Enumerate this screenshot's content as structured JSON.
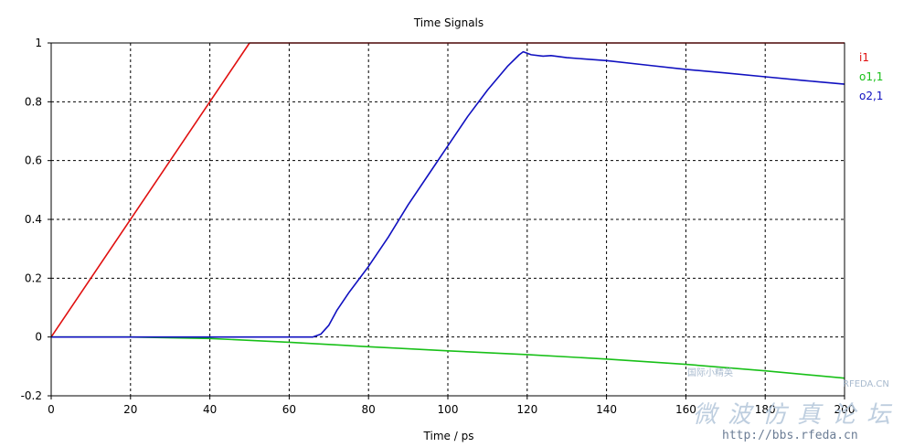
{
  "chart_data": {
    "type": "line",
    "title": "Time Signals",
    "xlabel": "Time / ps",
    "ylabel": "",
    "xlim": [
      0,
      200
    ],
    "ylim": [
      -0.2,
      1
    ],
    "xticks": [
      "0",
      "20",
      "40",
      "60",
      "80",
      "100",
      "120",
      "140",
      "160",
      "180",
      "200"
    ],
    "yticks": [
      "-0.2",
      "0",
      "0.2",
      "0.4",
      "0.6",
      "0.8",
      "1"
    ],
    "grid": true,
    "legend_position": "right",
    "series": [
      {
        "name": "i1",
        "color": "#e01010",
        "points": [
          [
            0,
            0
          ],
          [
            50,
            1
          ],
          [
            200,
            1
          ]
        ]
      },
      {
        "name": "o1,1",
        "color": "#18c018",
        "points": [
          [
            0,
            0
          ],
          [
            20,
            0
          ],
          [
            40,
            -0.005
          ],
          [
            60,
            -0.018
          ],
          [
            80,
            -0.033
          ],
          [
            100,
            -0.047
          ],
          [
            120,
            -0.06
          ],
          [
            140,
            -0.075
          ],
          [
            160,
            -0.093
          ],
          [
            180,
            -0.115
          ],
          [
            200,
            -0.14
          ]
        ]
      },
      {
        "name": "o2,1",
        "color": "#1010c0",
        "points": [
          [
            0,
            0
          ],
          [
            20,
            0
          ],
          [
            40,
            0
          ],
          [
            60,
            0
          ],
          [
            66,
            0
          ],
          [
            68,
            0.01
          ],
          [
            70,
            0.04
          ],
          [
            72,
            0.09
          ],
          [
            75,
            0.15
          ],
          [
            80,
            0.24
          ],
          [
            85,
            0.34
          ],
          [
            90,
            0.45
          ],
          [
            95,
            0.55
          ],
          [
            100,
            0.65
          ],
          [
            105,
            0.75
          ],
          [
            110,
            0.84
          ],
          [
            115,
            0.92
          ],
          [
            118,
            0.96
          ],
          [
            119,
            0.97
          ],
          [
            121,
            0.96
          ],
          [
            124,
            0.955
          ],
          [
            126,
            0.957
          ],
          [
            130,
            0.95
          ],
          [
            140,
            0.94
          ],
          [
            150,
            0.925
          ],
          [
            160,
            0.91
          ],
          [
            170,
            0.898
          ],
          [
            180,
            0.885
          ],
          [
            190,
            0.872
          ],
          [
            200,
            0.86
          ]
        ]
      }
    ]
  },
  "watermark": {
    "cn_text": "微波仿真论坛",
    "url": "http://bbs.rfeda.cn",
    "brand": "RFEDA.CN",
    "small_text": "国际小精英"
  }
}
